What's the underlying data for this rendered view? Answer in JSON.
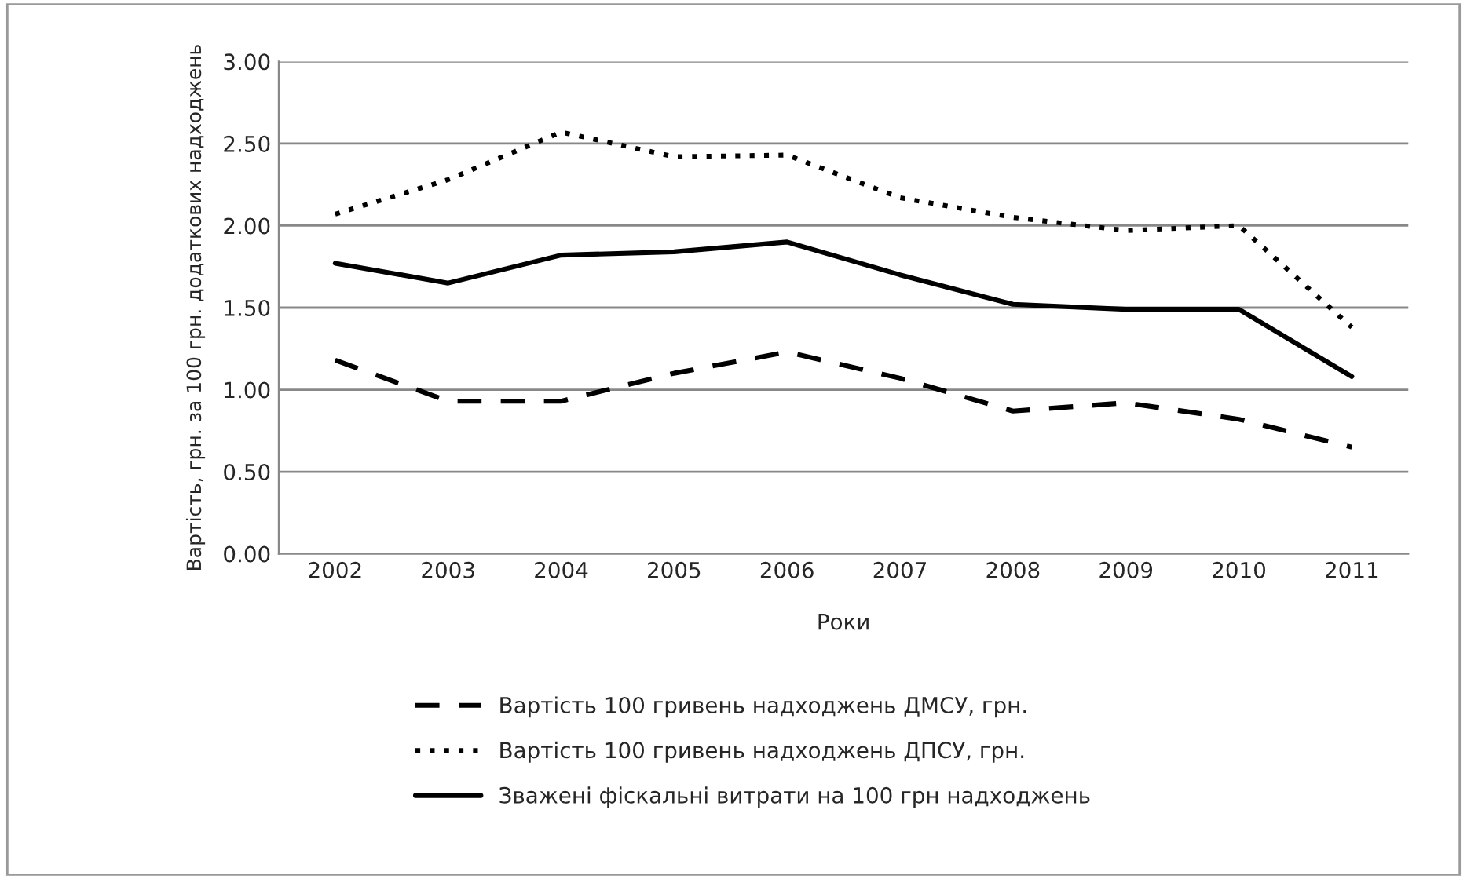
{
  "chart_data": {
    "type": "line",
    "xlabel": "Роки",
    "ylabel": "Вартість, грн. за 100 грн. додаткових надходжень",
    "categories": [
      "2002",
      "2003",
      "2004",
      "2005",
      "2006",
      "2007",
      "2008",
      "2009",
      "2010",
      "2011"
    ],
    "series": [
      {
        "name": "Вартість 100 гривень надходжень ДМСУ, грн.",
        "color": "#000000",
        "line_style": "dashed",
        "values": [
          1.18,
          0.93,
          0.93,
          1.1,
          1.23,
          1.07,
          0.87,
          0.92,
          0.82,
          0.65
        ]
      },
      {
        "name": "Вартість 100 гривень надходжень ДПСУ, грн.",
        "color": "#000000",
        "line_style": "dotted",
        "values": [
          2.07,
          2.28,
          2.57,
          2.42,
          2.43,
          2.17,
          2.05,
          1.97,
          2.0,
          1.38
        ]
      },
      {
        "name": "Зважені фіскальні витрати на 100 грн надходжень",
        "color": "#000000",
        "line_style": "solid",
        "values": [
          1.77,
          1.65,
          1.82,
          1.84,
          1.9,
          1.7,
          1.52,
          1.49,
          1.49,
          1.08
        ]
      }
    ],
    "ylim": [
      0,
      3
    ],
    "yticks": [
      {
        "value": 0,
        "label": "0.00"
      },
      {
        "value": 0.5,
        "label": "0.50"
      },
      {
        "value": 1,
        "label": "1.00"
      },
      {
        "value": 1.5,
        "label": "1.50"
      },
      {
        "value": 2,
        "label": "2.00"
      },
      {
        "value": 2.5,
        "label": "2.50"
      },
      {
        "value": 3,
        "label": "3.00"
      }
    ],
    "grid": "y",
    "legend": "bottom",
    "marker": "none"
  }
}
